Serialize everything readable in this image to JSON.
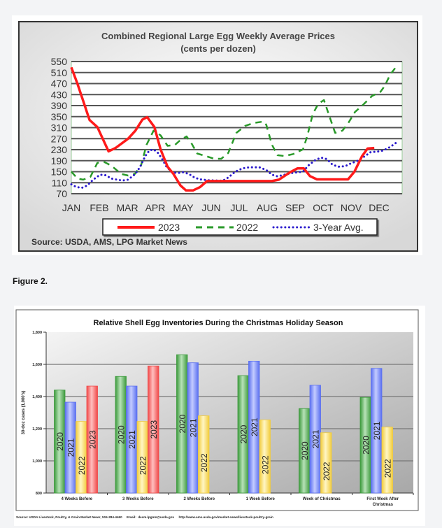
{
  "figure_label": "Figure 2.",
  "chart_data": [
    {
      "type": "line",
      "title": "Combined Regional Large Egg Weekly Average Prices",
      "subtitle": "(cents per dozen)",
      "xlabel": "",
      "ylabel": "",
      "ylim": [
        70,
        550
      ],
      "yticks": [
        70,
        110,
        150,
        190,
        230,
        270,
        310,
        350,
        390,
        430,
        470,
        510,
        550
      ],
      "categories": [
        "JAN",
        "FEB",
        "MAR",
        "APR",
        "MAY",
        "JUN",
        "JUL",
        "AUG",
        "SEP",
        "OCT",
        "NOV",
        "DEC"
      ],
      "x_unit": "month index (0 = JAN)",
      "grid": true,
      "legend_placement": "bottom",
      "source": "Source: USDA, AMS, LPG  Market News",
      "series": [
        {
          "name": "2023",
          "color": "#ff1a1a",
          "style": "solid",
          "points": [
            [
              0,
              529
            ],
            [
              0.22,
              469
            ],
            [
              0.47,
              393
            ],
            [
              0.65,
              338
            ],
            [
              0.93,
              312
            ],
            [
              1.33,
              224
            ],
            [
              1.58,
              236
            ],
            [
              2.03,
              270
            ],
            [
              2.29,
              299
            ],
            [
              2.54,
              339
            ],
            [
              2.71,
              348
            ],
            [
              2.97,
              312
            ],
            [
              3.19,
              231
            ],
            [
              3.44,
              168
            ],
            [
              3.65,
              142
            ],
            [
              3.9,
              100
            ],
            [
              4.1,
              82
            ],
            [
              4.35,
              82
            ],
            [
              4.6,
              94
            ],
            [
              4.85,
              116
            ],
            [
              7.17,
              116
            ],
            [
              7.42,
              121
            ],
            [
              7.82,
              148
            ],
            [
              8.08,
              162
            ],
            [
              8.31,
              162
            ],
            [
              8.53,
              134
            ],
            [
              8.78,
              122
            ],
            [
              9.89,
              122
            ],
            [
              10.12,
              150
            ],
            [
              10.39,
              206
            ],
            [
              10.59,
              234
            ],
            [
              10.83,
              236
            ]
          ]
        },
        {
          "name": "2022",
          "color": "#2a9a2a",
          "style": "dashed",
          "points": [
            [
              0,
              150
            ],
            [
              0.22,
              125
            ],
            [
              0.42,
              121
            ],
            [
              0.68,
              131
            ],
            [
              0.93,
              182
            ],
            [
              1.18,
              185
            ],
            [
              1.43,
              172
            ],
            [
              1.78,
              142
            ],
            [
              2.03,
              136
            ],
            [
              2.27,
              142
            ],
            [
              2.49,
              172
            ],
            [
              2.69,
              248
            ],
            [
              2.94,
              299
            ],
            [
              3.19,
              282
            ],
            [
              3.44,
              244
            ],
            [
              3.7,
              247
            ],
            [
              3.9,
              265
            ],
            [
              4.12,
              278
            ],
            [
              4.3,
              252
            ],
            [
              4.5,
              216
            ],
            [
              4.8,
              207
            ],
            [
              5.1,
              197
            ],
            [
              5.36,
              197
            ],
            [
              5.61,
              218
            ],
            [
              5.9,
              291
            ],
            [
              6.21,
              316
            ],
            [
              6.52,
              327
            ],
            [
              6.87,
              332
            ],
            [
              6.97,
              320
            ],
            [
              7.17,
              248
            ],
            [
              7.37,
              210
            ],
            [
              7.62,
              207
            ],
            [
              7.93,
              214
            ],
            [
              8.28,
              231
            ],
            [
              8.43,
              278
            ],
            [
              8.63,
              359
            ],
            [
              8.83,
              397
            ],
            [
              9.03,
              410
            ],
            [
              9.23,
              350
            ],
            [
              9.43,
              291
            ],
            [
              9.69,
              299
            ],
            [
              9.89,
              325
            ],
            [
              10.14,
              367
            ],
            [
              10.44,
              394
            ],
            [
              10.75,
              425
            ],
            [
              11.05,
              440
            ],
            [
              11.2,
              461
            ],
            [
              11.4,
              503
            ],
            [
              11.65,
              536
            ]
          ]
        },
        {
          "name": "3-Year Avg.",
          "color": "#2a1acc",
          "style": "dotted",
          "points": [
            [
              0,
              104
            ],
            [
              0.17,
              95
            ],
            [
              0.37,
              91
            ],
            [
              0.57,
              100
            ],
            [
              0.78,
              121
            ],
            [
              1.03,
              139
            ],
            [
              1.23,
              137
            ],
            [
              1.43,
              125
            ],
            [
              1.63,
              121
            ],
            [
              1.83,
              118
            ],
            [
              2.03,
              121
            ],
            [
              2.29,
              142
            ],
            [
              2.46,
              168
            ],
            [
              2.64,
              206
            ],
            [
              2.79,
              227
            ],
            [
              2.94,
              231
            ],
            [
              3.09,
              219
            ],
            [
              3.24,
              197
            ],
            [
              3.4,
              168
            ],
            [
              3.6,
              148
            ],
            [
              3.8,
              145
            ],
            [
              4.0,
              148
            ],
            [
              4.2,
              142
            ],
            [
              4.4,
              129
            ],
            [
              4.6,
              122
            ],
            [
              4.9,
              119
            ],
            [
              5.41,
              117
            ],
            [
              5.61,
              129
            ],
            [
              5.86,
              150
            ],
            [
              6.11,
              162
            ],
            [
              6.36,
              166
            ],
            [
              6.72,
              166
            ],
            [
              6.97,
              156
            ],
            [
              7.17,
              139
            ],
            [
              7.37,
              133
            ],
            [
              7.62,
              139
            ],
            [
              7.93,
              146
            ],
            [
              8.28,
              150
            ],
            [
              8.48,
              173
            ],
            [
              8.73,
              193
            ],
            [
              8.93,
              201
            ],
            [
              9.13,
              196
            ],
            [
              9.33,
              176
            ],
            [
              9.54,
              168
            ],
            [
              9.79,
              170
            ],
            [
              9.99,
              180
            ],
            [
              10.24,
              190
            ],
            [
              10.5,
              207
            ],
            [
              10.7,
              221
            ],
            [
              10.95,
              223
            ],
            [
              11.15,
              227
            ],
            [
              11.4,
              240
            ],
            [
              11.65,
              258
            ]
          ]
        }
      ]
    },
    {
      "type": "bar",
      "title": "Relative Shell Egg Inventories During the Christmas Holiday Season",
      "xlabel": "",
      "ylabel": "30-doz cases (1,000's)",
      "ylim": [
        800,
        1800
      ],
      "yticks": [
        "800",
        "1,000",
        "1,200",
        "1,400",
        "1,600",
        "1,800"
      ],
      "ytick_values": [
        800,
        1000,
        1200,
        1400,
        1600,
        1800
      ],
      "grid": true,
      "source": "Source: USDA Livestock, Poultry, & Grain Market News; 515-284-4460     Email:  desm.lpgmn@usda.gov     http://www.ams.usda.gov/market-news/livestock-poultry-grain",
      "categories": [
        "4 Weeks Before",
        "3 Weeks Before",
        "2 Weeks Before",
        "1 Week Before",
        "Week of Christmas",
        "First Week After Christmas"
      ],
      "series": [
        {
          "name": "2020",
          "color": "#3c9a3c",
          "light": "#b8e2b8",
          "values": [
            1440,
            1525,
            1660,
            1530,
            1325,
            1395
          ]
        },
        {
          "name": "2021",
          "color": "#5a6ff0",
          "light": "#c4ccff",
          "values": [
            1365,
            1465,
            1610,
            1620,
            1470,
            1575
          ]
        },
        {
          "name": "2022",
          "color": "#f2cc3c",
          "light": "#fff6c4",
          "values": [
            1245,
            1245,
            1280,
            1255,
            1175,
            1210
          ]
        },
        {
          "name": "2023",
          "color": "#f04848",
          "light": "#ffc0c0",
          "values": [
            1465,
            1590,
            null,
            null,
            null,
            null
          ]
        }
      ]
    }
  ]
}
